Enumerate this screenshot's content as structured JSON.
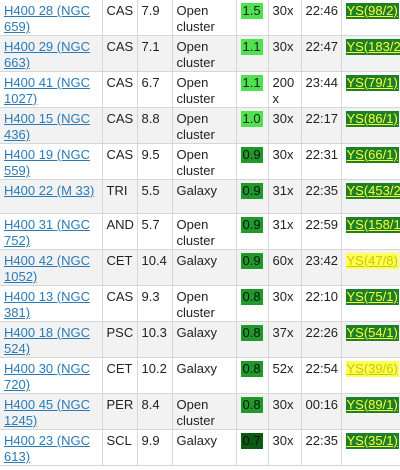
{
  "colors": {
    "link": "#2a7ab8",
    "surface_bright": "#4fe24f",
    "surface_mid": "#1f9a2a",
    "surface_dark": "#0a5a14",
    "ys_green_bg": "#1e7f2a",
    "ys_green_text": "#ffff33",
    "ys_yellow_bg": "#ffff55",
    "ys_yellow_text": "#c8c800"
  },
  "rows": [
    {
      "object": "H400 28 (NGC 659)",
      "constellation": "CAS",
      "magnitude": "7.9",
      "type": "Open cluster",
      "surface": "1.5",
      "surface_color": "#4fe24f",
      "surface_text": "#222222",
      "power": "30x",
      "time": "22:46",
      "ys": "YS(98/2)",
      "ys_bg": "#1e7f2a",
      "ys_text": "#ffff33"
    },
    {
      "object": "H400 29 (NGC 663)",
      "constellation": "CAS",
      "magnitude": "7.1",
      "type": "Open cluster",
      "surface": "1.1",
      "surface_color": "#4fe24f",
      "surface_text": "#222222",
      "power": "30x",
      "time": "22:47",
      "ys": "YS(183/2)",
      "ys_bg": "#1e7f2a",
      "ys_text": "#ffff33"
    },
    {
      "object": "H400 41 (NGC 1027)",
      "constellation": "CAS",
      "magnitude": "6.7",
      "type": "Open cluster",
      "surface": "1.1",
      "surface_color": "#4fe24f",
      "surface_text": "#222222",
      "power": "200 x",
      "time": "23:44",
      "ys": "YS(79/1)",
      "ys_bg": "#1e7f2a",
      "ys_text": "#ffff33"
    },
    {
      "object": "H400 15 (NGC 436)",
      "constellation": "CAS",
      "magnitude": "8.8",
      "type": "Open cluster",
      "surface": "1.0",
      "surface_color": "#4fe24f",
      "surface_text": "#222222",
      "power": "30x",
      "time": "22:17",
      "ys": "YS(86/1)",
      "ys_bg": "#1e7f2a",
      "ys_text": "#ffff33"
    },
    {
      "object": "H400 19 (NGC 559)",
      "constellation": "CAS",
      "magnitude": "9.5",
      "type": "Open cluster",
      "surface": "0.9",
      "surface_color": "#1f9a2a",
      "surface_text": "#111111",
      "power": "30x",
      "time": "22:31",
      "ys": "YS(66/1)",
      "ys_bg": "#1e7f2a",
      "ys_text": "#ffff33"
    },
    {
      "object": "H400 22 (M 33)",
      "constellation": "TRI",
      "magnitude": "5.5",
      "type": "Galaxy",
      "surface": "0.9",
      "surface_color": "#1f9a2a",
      "surface_text": "#111111",
      "power": "31x",
      "time": "22:35",
      "ys": "YS(453/2)",
      "ys_bg": "#1e7f2a",
      "ys_text": "#ffff33"
    },
    {
      "object": "H400 31 (NGC 752)",
      "constellation": "AND",
      "magnitude": "5.7",
      "type": "Open cluster",
      "surface": "0.9",
      "surface_color": "#1f9a2a",
      "surface_text": "#111111",
      "power": "31x",
      "time": "22:59",
      "ys": "YS(158/1)",
      "ys_bg": "#1e7f2a",
      "ys_text": "#ffff33"
    },
    {
      "object": "H400 42 (NGC 1052)",
      "constellation": "CET",
      "magnitude": "10.4",
      "type": "Galaxy",
      "surface": "0.9",
      "surface_color": "#1f9a2a",
      "surface_text": "#111111",
      "power": "60x",
      "time": "23:42",
      "ys": "YS(47/8)",
      "ys_bg": "#ffff55",
      "ys_text": "#c8c800"
    },
    {
      "object": "H400 13 (NGC 381)",
      "constellation": "CAS",
      "magnitude": "9.3",
      "type": "Open cluster",
      "surface": "0.8",
      "surface_color": "#1f9a2a",
      "surface_text": "#111111",
      "power": "30x",
      "time": "22:10",
      "ys": "YS(75/1)",
      "ys_bg": "#1e7f2a",
      "ys_text": "#ffff33"
    },
    {
      "object": "H400 18 (NGC 524)",
      "constellation": "PSC",
      "magnitude": "10.3",
      "type": "Galaxy",
      "surface": "0.8",
      "surface_color": "#1f9a2a",
      "surface_text": "#111111",
      "power": "37x",
      "time": "22:26",
      "ys": "YS(54/1)",
      "ys_bg": "#1e7f2a",
      "ys_text": "#ffff33"
    },
    {
      "object": "H400 30 (NGC 720)",
      "constellation": "CET",
      "magnitude": "10.2",
      "type": "Galaxy",
      "surface": "0.8",
      "surface_color": "#1f9a2a",
      "surface_text": "#111111",
      "power": "52x",
      "time": "22:54",
      "ys": "YS(39/6)",
      "ys_bg": "#ffff55",
      "ys_text": "#c8c800"
    },
    {
      "object": "H400 45 (NGC 1245)",
      "constellation": "PER",
      "magnitude": "8.4",
      "type": "Open cluster",
      "surface": "0.8",
      "surface_color": "#1f9a2a",
      "surface_text": "#111111",
      "power": "30x",
      "time": "00:16",
      "ys": "YS(89/1)",
      "ys_bg": "#1e7f2a",
      "ys_text": "#ffff33"
    },
    {
      "object": "H400 23 (NGC 613)",
      "constellation": "SCL",
      "magnitude": "9.9",
      "type": "Galaxy",
      "surface": "0.7",
      "surface_color": "#0a5a14",
      "surface_text": "#111111",
      "power": "30x",
      "time": "22:35",
      "ys": "YS(35/1)",
      "ys_bg": "#1e7f2a",
      "ys_text": "#ffff33"
    }
  ]
}
